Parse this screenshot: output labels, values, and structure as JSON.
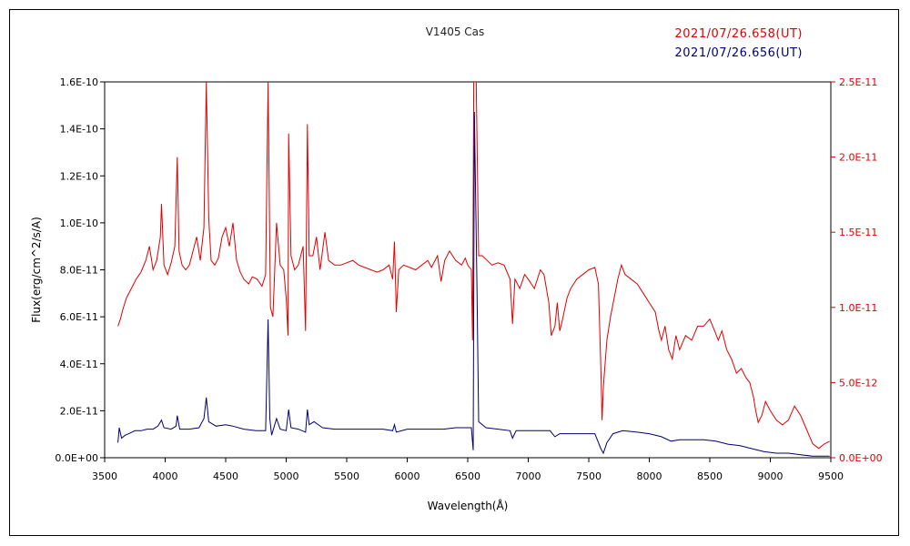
{
  "chart_data": {
    "type": "line",
    "title": "V1405 Cas",
    "xlabel": "Wavelength(Å)",
    "ylabel": "Flux(erg/cm^2/s/A)",
    "xlim": [
      3500,
      9500
    ],
    "ylim_left": [
      0,
      1.6e-10
    ],
    "ylim_right": [
      0,
      2.5e-11
    ],
    "x_ticks": [
      "3500",
      "4000",
      "4500",
      "5000",
      "5500",
      "6000",
      "6500",
      "7000",
      "7500",
      "8000",
      "8500",
      "9000",
      "9500"
    ],
    "y_left_ticks": [
      "0.0E+00",
      "2.0E-11",
      "4.0E-11",
      "6.0E-11",
      "8.0E-11",
      "1.0E-10",
      "1.2E-10",
      "1.4E-10",
      "1.6E-10"
    ],
    "y_right_ticks": [
      "0.0E+00",
      "5.0E-12",
      "1.0E-11",
      "1.5E-11",
      "2.0E-11",
      "2.5E-11"
    ],
    "legend": [
      {
        "label": "2021/07/26.658(UT)",
        "color": "#e00000",
        "axis": "left"
      },
      {
        "label": "2021/07/26.656(UT)",
        "color": "#000070",
        "axis": "right"
      }
    ],
    "series": [
      {
        "axis": "left",
        "color": "#e00000",
        "points": [
          [
            3610,
            5.6e-11
          ],
          [
            3630,
            5.9e-11
          ],
          [
            3650,
            6.3e-11
          ],
          [
            3680,
            6.8e-11
          ],
          [
            3720,
            7.2e-11
          ],
          [
            3760,
            7.6e-11
          ],
          [
            3800,
            7.9e-11
          ],
          [
            3840,
            8.4e-11
          ],
          [
            3870,
            9e-11
          ],
          [
            3900,
            8e-11
          ],
          [
            3930,
            8.4e-11
          ],
          [
            3960,
            9.4e-11
          ],
          [
            3970,
            1.08e-10
          ],
          [
            3990,
            8.2e-11
          ],
          [
            4020,
            7.8e-11
          ],
          [
            4050,
            8.3e-11
          ],
          [
            4080,
            9e-11
          ],
          [
            4100,
            1.28e-10
          ],
          [
            4115,
            8.8e-11
          ],
          [
            4140,
            8.2e-11
          ],
          [
            4170,
            8e-11
          ],
          [
            4200,
            8.2e-11
          ],
          [
            4230,
            8.8e-11
          ],
          [
            4260,
            9.4e-11
          ],
          [
            4290,
            8.4e-11
          ],
          [
            4320,
            9.8e-11
          ],
          [
            4340,
            1.6e-10
          ],
          [
            4360,
            1.02e-10
          ],
          [
            4380,
            8.4e-11
          ],
          [
            4410,
            8.2e-11
          ],
          [
            4440,
            8.5e-11
          ],
          [
            4470,
            9.4e-11
          ],
          [
            4500,
            9.8e-11
          ],
          [
            4530,
            9e-11
          ],
          [
            4560,
            1e-10
          ],
          [
            4590,
            8.4e-11
          ],
          [
            4620,
            7.9e-11
          ],
          [
            4650,
            7.6e-11
          ],
          [
            4690,
            7.4e-11
          ],
          [
            4720,
            7.7e-11
          ],
          [
            4760,
            7.6e-11
          ],
          [
            4800,
            7.3e-11
          ],
          [
            4830,
            7.8e-11
          ],
          [
            4850,
            1.6e-10
          ],
          [
            4870,
            6.4e-11
          ],
          [
            4890,
            6e-11
          ],
          [
            4920,
            1e-10
          ],
          [
            4950,
            8.2e-11
          ],
          [
            4980,
            8e-11
          ],
          [
            5000,
            6.8e-11
          ],
          [
            5015,
            5.2e-11
          ],
          [
            5020,
            1.38e-10
          ],
          [
            5040,
            8.6e-11
          ],
          [
            5070,
            8e-11
          ],
          [
            5100,
            8.2e-11
          ],
          [
            5140,
            9e-11
          ],
          [
            5160,
            5.4e-11
          ],
          [
            5175,
            1.42e-10
          ],
          [
            5190,
            8.6e-11
          ],
          [
            5220,
            8.6e-11
          ],
          [
            5250,
            9.4e-11
          ],
          [
            5280,
            8e-11
          ],
          [
            5320,
            9.6e-11
          ],
          [
            5350,
            8.4e-11
          ],
          [
            5400,
            8.2e-11
          ],
          [
            5450,
            8.2e-11
          ],
          [
            5500,
            8.3e-11
          ],
          [
            5550,
            8.4e-11
          ],
          [
            5600,
            8.2e-11
          ],
          [
            5650,
            8.1e-11
          ],
          [
            5700,
            8e-11
          ],
          [
            5750,
            7.9e-11
          ],
          [
            5800,
            8e-11
          ],
          [
            5850,
            8.2e-11
          ],
          [
            5880,
            7.6e-11
          ],
          [
            5895,
            9.2e-11
          ],
          [
            5910,
            6.2e-11
          ],
          [
            5930,
            8e-11
          ],
          [
            5970,
            8.2e-11
          ],
          [
            6020,
            8.1e-11
          ],
          [
            6070,
            8e-11
          ],
          [
            6120,
            8.2e-11
          ],
          [
            6170,
            8.4e-11
          ],
          [
            6200,
            8.1e-11
          ],
          [
            6250,
            8.6e-11
          ],
          [
            6280,
            7.5e-11
          ],
          [
            6310,
            8.4e-11
          ],
          [
            6350,
            8.8e-11
          ],
          [
            6400,
            8.4e-11
          ],
          [
            6450,
            8.2e-11
          ],
          [
            6480,
            8.5e-11
          ],
          [
            6500,
            8.2e-11
          ],
          [
            6530,
            8e-11
          ],
          [
            6540,
            5e-11
          ],
          [
            6550,
            1.6e-10
          ],
          [
            6570,
            1.6e-10
          ],
          [
            6590,
            8.6e-11
          ],
          [
            6620,
            8.6e-11
          ],
          [
            6660,
            8.4e-11
          ],
          [
            6700,
            8.2e-11
          ],
          [
            6750,
            8.3e-11
          ],
          [
            6800,
            8.2e-11
          ],
          [
            6850,
            7.6e-11
          ],
          [
            6870,
            5.7e-11
          ],
          [
            6890,
            7.6e-11
          ],
          [
            6930,
            7.2e-11
          ],
          [
            6970,
            7.8e-11
          ],
          [
            7000,
            7.6e-11
          ],
          [
            7050,
            7.2e-11
          ],
          [
            7100,
            8e-11
          ],
          [
            7130,
            7.8e-11
          ],
          [
            7170,
            6.6e-11
          ],
          [
            7190,
            5.2e-11
          ],
          [
            7220,
            5.6e-11
          ],
          [
            7240,
            6.6e-11
          ],
          [
            7260,
            5.4e-11
          ],
          [
            7280,
            5.8e-11
          ],
          [
            7320,
            6.8e-11
          ],
          [
            7350,
            7.2e-11
          ],
          [
            7400,
            7.6e-11
          ],
          [
            7450,
            7.8e-11
          ],
          [
            7500,
            8e-11
          ],
          [
            7550,
            8.1e-11
          ],
          [
            7580,
            7.4e-11
          ],
          [
            7600,
            3.8e-11
          ],
          [
            7610,
            1.6e-11
          ],
          [
            7620,
            3e-11
          ],
          [
            7650,
            5e-11
          ],
          [
            7680,
            6e-11
          ],
          [
            7710,
            6.8e-11
          ],
          [
            7740,
            7.6e-11
          ],
          [
            7770,
            8.2e-11
          ],
          [
            7800,
            7.8e-11
          ],
          [
            7850,
            7.6e-11
          ],
          [
            7900,
            7.4e-11
          ],
          [
            7950,
            7e-11
          ],
          [
            8000,
            6.6e-11
          ],
          [
            8050,
            6.2e-11
          ],
          [
            8080,
            5.4e-11
          ],
          [
            8100,
            5e-11
          ],
          [
            8130,
            5.6e-11
          ],
          [
            8160,
            4.6e-11
          ],
          [
            8190,
            4.2e-11
          ],
          [
            8220,
            5.2e-11
          ],
          [
            8250,
            4.6e-11
          ],
          [
            8300,
            5.2e-11
          ],
          [
            8350,
            5e-11
          ],
          [
            8400,
            5.6e-11
          ],
          [
            8450,
            5.6e-11
          ],
          [
            8500,
            5.9e-11
          ],
          [
            8540,
            5.4e-11
          ],
          [
            8570,
            5e-11
          ],
          [
            8600,
            5.4e-11
          ],
          [
            8640,
            4.6e-11
          ],
          [
            8680,
            4.2e-11
          ],
          [
            8720,
            3.6e-11
          ],
          [
            8760,
            3.8e-11
          ],
          [
            8800,
            3.4e-11
          ],
          [
            8830,
            3.2e-11
          ],
          [
            8860,
            2.6e-11
          ],
          [
            8880,
            2e-11
          ],
          [
            8900,
            1.5e-11
          ],
          [
            8930,
            1.8e-11
          ],
          [
            8960,
            2.4e-11
          ],
          [
            9000,
            2e-11
          ],
          [
            9050,
            1.6e-11
          ],
          [
            9100,
            1.4e-11
          ],
          [
            9150,
            1.6e-11
          ],
          [
            9200,
            2.2e-11
          ],
          [
            9250,
            1.8e-11
          ],
          [
            9300,
            1.2e-11
          ],
          [
            9350,
            6e-12
          ],
          [
            9400,
            4e-12
          ],
          [
            9450,
            6e-12
          ],
          [
            9490,
            7e-12
          ]
        ]
      },
      {
        "axis": "right",
        "color": "#000070",
        "points": [
          [
            3610,
            1e-12
          ],
          [
            3620,
            2e-12
          ],
          [
            3640,
            1.3e-12
          ],
          [
            3670,
            1.5e-12
          ],
          [
            3700,
            1.6e-12
          ],
          [
            3750,
            1.8e-12
          ],
          [
            3800,
            1.8e-12
          ],
          [
            3850,
            1.9e-12
          ],
          [
            3900,
            1.9e-12
          ],
          [
            3940,
            2.1e-12
          ],
          [
            3970,
            2.5e-12
          ],
          [
            3990,
            2e-12
          ],
          [
            4050,
            1.9e-12
          ],
          [
            4090,
            2.1e-12
          ],
          [
            4100,
            2.8e-12
          ],
          [
            4120,
            1.9e-12
          ],
          [
            4200,
            1.9e-12
          ],
          [
            4280,
            2e-12
          ],
          [
            4320,
            2.6e-12
          ],
          [
            4340,
            4e-12
          ],
          [
            4360,
            2.4e-12
          ],
          [
            4420,
            2.1e-12
          ],
          [
            4500,
            2.2e-12
          ],
          [
            4560,
            2.1e-12
          ],
          [
            4650,
            1.9e-12
          ],
          [
            4750,
            1.8e-12
          ],
          [
            4830,
            1.8e-12
          ],
          [
            4850,
            9.2e-12
          ],
          [
            4865,
            2.6e-12
          ],
          [
            4880,
            1.5e-12
          ],
          [
            4920,
            2.6e-12
          ],
          [
            4950,
            1.9e-12
          ],
          [
            5000,
            1.8e-12
          ],
          [
            5020,
            3.2e-12
          ],
          [
            5040,
            2e-12
          ],
          [
            5100,
            1.9e-12
          ],
          [
            5160,
            1.7e-12
          ],
          [
            5175,
            3.2e-12
          ],
          [
            5190,
            2.2e-12
          ],
          [
            5230,
            2.4e-12
          ],
          [
            5300,
            2e-12
          ],
          [
            5400,
            1.9e-12
          ],
          [
            5500,
            1.9e-12
          ],
          [
            5600,
            1.9e-12
          ],
          [
            5700,
            1.9e-12
          ],
          [
            5800,
            1.9e-12
          ],
          [
            5880,
            1.8e-12
          ],
          [
            5895,
            2.2e-12
          ],
          [
            5910,
            1.7e-12
          ],
          [
            6000,
            1.9e-12
          ],
          [
            6100,
            1.9e-12
          ],
          [
            6200,
            1.9e-12
          ],
          [
            6300,
            1.9e-12
          ],
          [
            6400,
            2e-12
          ],
          [
            6480,
            2e-12
          ],
          [
            6530,
            2e-12
          ],
          [
            6545,
            5e-13
          ],
          [
            6555,
            2.3e-11
          ],
          [
            6575,
            1.2e-11
          ],
          [
            6590,
            2.4e-12
          ],
          [
            6650,
            2e-12
          ],
          [
            6750,
            1.9e-12
          ],
          [
            6850,
            1.8e-12
          ],
          [
            6870,
            1.3e-12
          ],
          [
            6900,
            1.8e-12
          ],
          [
            7000,
            1.8e-12
          ],
          [
            7100,
            1.8e-12
          ],
          [
            7180,
            1.8e-12
          ],
          [
            7220,
            1.4e-12
          ],
          [
            7260,
            1.6e-12
          ],
          [
            7350,
            1.6e-12
          ],
          [
            7450,
            1.6e-12
          ],
          [
            7550,
            1.6e-12
          ],
          [
            7600,
            6e-13
          ],
          [
            7620,
            3e-13
          ],
          [
            7650,
            1e-12
          ],
          [
            7700,
            1.6e-12
          ],
          [
            7780,
            1.8e-12
          ],
          [
            7900,
            1.7e-12
          ],
          [
            8000,
            1.6e-12
          ],
          [
            8100,
            1.4e-12
          ],
          [
            8180,
            1.1e-12
          ],
          [
            8250,
            1.2e-12
          ],
          [
            8350,
            1.2e-12
          ],
          [
            8450,
            1.2e-12
          ],
          [
            8550,
            1.1e-12
          ],
          [
            8650,
            9e-13
          ],
          [
            8750,
            8e-13
          ],
          [
            8850,
            6e-13
          ],
          [
            8950,
            4e-13
          ],
          [
            9050,
            3e-13
          ],
          [
            9150,
            3e-13
          ],
          [
            9250,
            2e-13
          ],
          [
            9350,
            1e-13
          ],
          [
            9450,
            1e-13
          ],
          [
            9490,
            1e-13
          ]
        ]
      }
    ]
  }
}
